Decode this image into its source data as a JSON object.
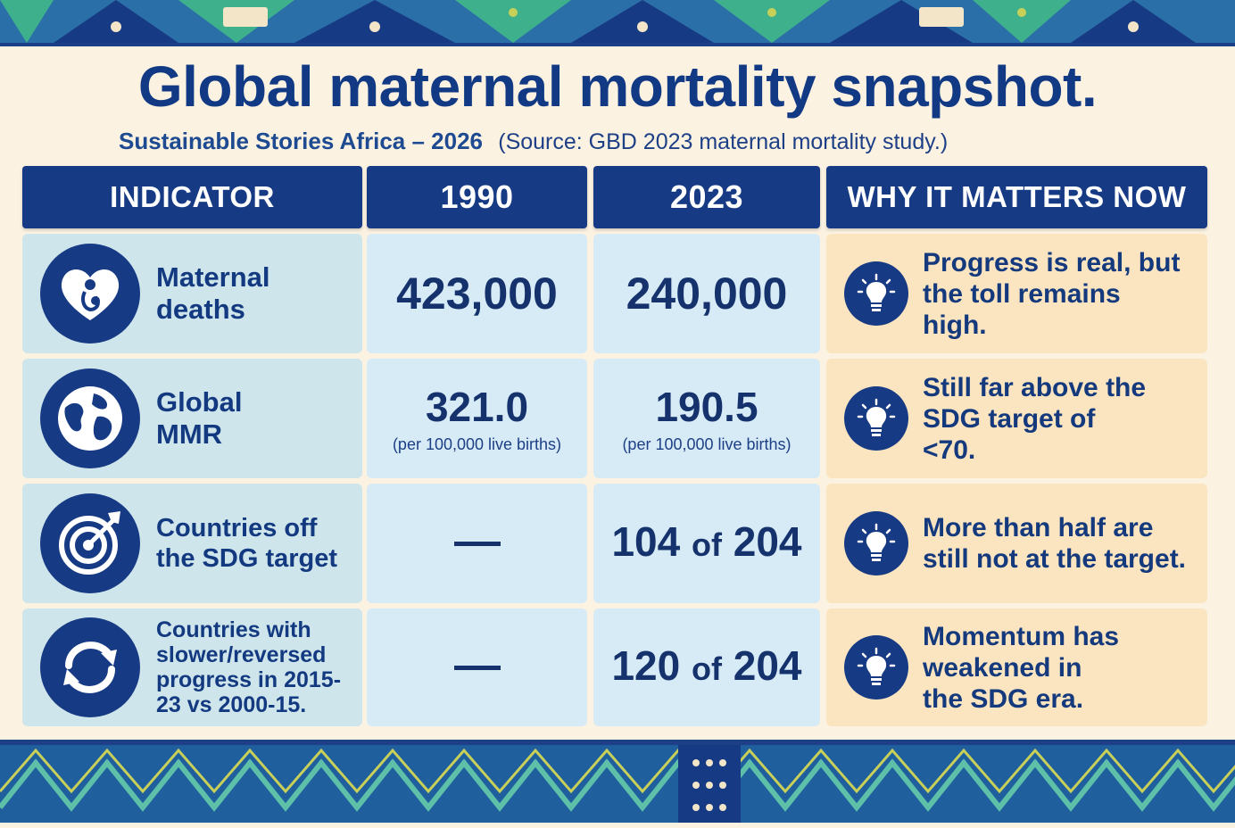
{
  "title": "Global maternal mortality snapshot.",
  "subtitle": {
    "brand": "Sustainable Stories Africa – 2026",
    "source": "(Source: GBD 2023 maternal mortality study.)"
  },
  "headers": {
    "indicator": "INDICATOR",
    "y1990": "1990",
    "y2023": "2023",
    "why": "WHY IT MATTERS NOW"
  },
  "rows": [
    {
      "icon": "mother-baby-heart-icon",
      "indicator": "Maternal deaths",
      "v1990": "423,000",
      "v2023": "240,000",
      "why": "Progress is real, but the toll remains high."
    },
    {
      "icon": "globe-icon",
      "indicator": "Global MMR",
      "v1990": "321.0",
      "unit1990": "(per 100,000 live births)",
      "v2023": "190.5",
      "unit2023": "(per 100,000 live births)",
      "why": "Still far above the SDG target of <70."
    },
    {
      "icon": "target-icon",
      "indicator": "Countries off the SDG target",
      "v1990": "—",
      "v2023_a": "104",
      "v2023_of": "of",
      "v2023_b": "204",
      "why": "More than half are still not at the target."
    },
    {
      "icon": "refresh-arrows-icon",
      "indicator": "Countries with slower/reversed progress in 2015-23 vs 2000-15.",
      "v1990": "—",
      "v2023_a": "120",
      "v2023_of": "of",
      "v2023_b": "204",
      "why": "Momentum has weakened in the SDG era."
    }
  ],
  "colors": {
    "navy": "#173a84",
    "indicator_bg": "#cfe5ec",
    "number_bg": "#d7ebf7",
    "why_bg": "#fbe5c1",
    "page_bg": "#fbf2e2"
  }
}
